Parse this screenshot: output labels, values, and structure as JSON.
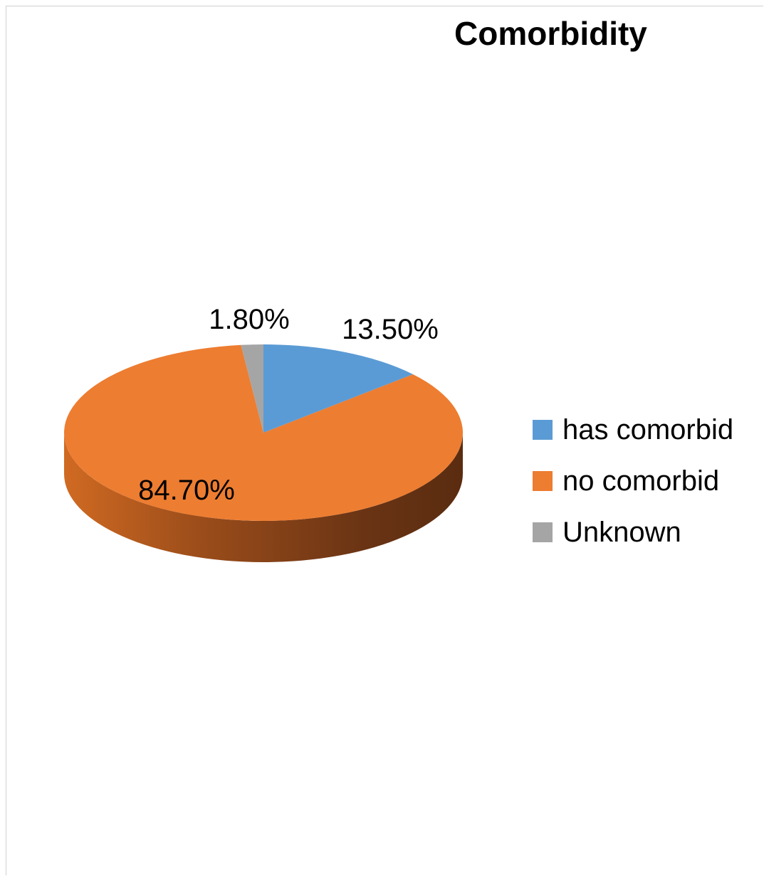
{
  "chart_data": {
    "type": "pie",
    "title": "Comorbidity",
    "categories": [
      "has comorbid",
      "no comorbid",
      "Unknown"
    ],
    "values": [
      13.5,
      84.7,
      1.8
    ],
    "data_labels": [
      "13.50%",
      "84.70%",
      "1.80%"
    ],
    "colors": [
      "#5B9BD5",
      "#ED7D31",
      "#A5A5A5"
    ],
    "style": "3d",
    "legend": "right"
  }
}
